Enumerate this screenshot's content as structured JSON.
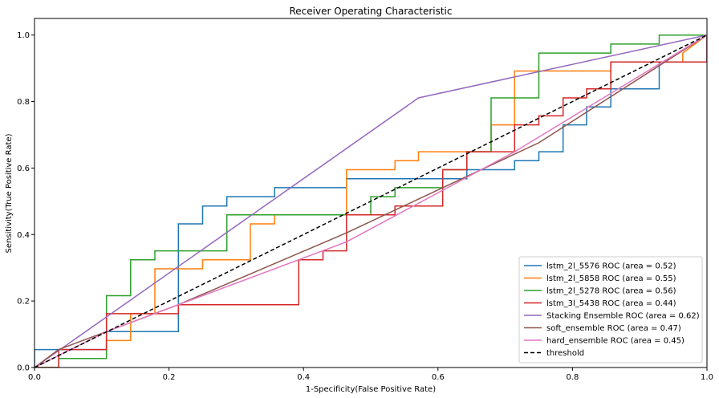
{
  "chart_data": {
    "type": "line",
    "title": "Receiver Operating Characteristic",
    "xlabel": "1-Specificity(False Positive Rate)",
    "ylabel": "Sensitivity(True Positive Rate)",
    "xlim": [
      0,
      1
    ],
    "ylim": [
      0,
      1.05
    ],
    "x_ticks": [
      "0.0",
      "0.2",
      "0.4",
      "0.6",
      "0.8",
      "1.0"
    ],
    "y_ticks": [
      "0.0",
      "0.2",
      "0.4",
      "0.6",
      "0.8",
      "1.0"
    ],
    "legend_position": "lower-right",
    "series": [
      {
        "name": "lstm_2l_5576 ROC (area = 0.52)",
        "color": "#1f77b4",
        "x": [
          0,
          0,
          0.107,
          0.107,
          0.214,
          0.214,
          0.25,
          0.25,
          0.286,
          0.286,
          0.357,
          0.357,
          0.464,
          0.464,
          0.643,
          0.643,
          0.714,
          0.714,
          0.75,
          0.75,
          0.786,
          0.786,
          0.821,
          0.821,
          0.857,
          0.857,
          0.929,
          0.929,
          1.0,
          1.0
        ],
        "y": [
          0,
          0.054,
          0.054,
          0.108,
          0.108,
          0.432,
          0.432,
          0.486,
          0.486,
          0.514,
          0.514,
          0.541,
          0.541,
          0.568,
          0.568,
          0.595,
          0.595,
          0.622,
          0.622,
          0.649,
          0.649,
          0.73,
          0.73,
          0.784,
          0.784,
          0.838,
          0.838,
          0.919,
          0.919,
          1.0
        ]
      },
      {
        "name": "lstm_2l_5858 ROC (area = 0.55)",
        "color": "#ff7f0e",
        "x": [
          0,
          0.036,
          0.036,
          0.107,
          0.107,
          0.143,
          0.143,
          0.179,
          0.179,
          0.25,
          0.25,
          0.321,
          0.321,
          0.357,
          0.357,
          0.464,
          0.464,
          0.536,
          0.536,
          0.571,
          0.571,
          0.679,
          0.679,
          0.714,
          0.714,
          0.857,
          0.857,
          0.964,
          0.964,
          1.0
        ],
        "y": [
          0,
          0,
          0.027,
          0.027,
          0.081,
          0.081,
          0.162,
          0.162,
          0.297,
          0.297,
          0.324,
          0.324,
          0.432,
          0.432,
          0.459,
          0.459,
          0.595,
          0.595,
          0.622,
          0.622,
          0.649,
          0.649,
          0.73,
          0.73,
          0.892,
          0.892,
          0.919,
          0.919,
          0.946,
          1.0
        ]
      },
      {
        "name": "lstm_2l_5278 ROC (area = 0.56)",
        "color": "#2ca02c",
        "x": [
          0,
          0.036,
          0.036,
          0.107,
          0.107,
          0.143,
          0.143,
          0.179,
          0.179,
          0.286,
          0.286,
          0.5,
          0.5,
          0.536,
          0.536,
          0.607,
          0.607,
          0.643,
          0.643,
          0.679,
          0.679,
          0.75,
          0.75,
          0.857,
          0.857,
          0.929,
          0.929,
          1.0
        ],
        "y": [
          0,
          0,
          0.027,
          0.027,
          0.216,
          0.216,
          0.324,
          0.324,
          0.351,
          0.351,
          0.459,
          0.459,
          0.514,
          0.514,
          0.541,
          0.541,
          0.595,
          0.595,
          0.649,
          0.649,
          0.811,
          0.811,
          0.946,
          0.946,
          0.973,
          0.973,
          1.0,
          1.0
        ]
      },
      {
        "name": "lstm_3l_5438 ROC (area = 0.44)",
        "color": "#d62728",
        "x": [
          0,
          0.036,
          0.036,
          0.107,
          0.107,
          0.214,
          0.214,
          0.393,
          0.393,
          0.429,
          0.429,
          0.464,
          0.464,
          0.536,
          0.536,
          0.607,
          0.607,
          0.643,
          0.643,
          0.714,
          0.714,
          0.75,
          0.75,
          0.786,
          0.786,
          0.821,
          0.821,
          0.857,
          0.857,
          0.964,
          0.964,
          1.0,
          1.0
        ],
        "y": [
          0,
          0,
          0.054,
          0.054,
          0.162,
          0.162,
          0.189,
          0.189,
          0.324,
          0.324,
          0.351,
          0.351,
          0.459,
          0.459,
          0.486,
          0.486,
          0.595,
          0.595,
          0.649,
          0.649,
          0.73,
          0.73,
          0.757,
          0.757,
          0.811,
          0.811,
          0.838,
          0.838,
          0.919,
          0.919,
          0.919,
          0.919,
          1.0
        ]
      },
      {
        "name": "Stacking Ensemble ROC (area = 0.62)",
        "color": "#9467bd",
        "x": [
          0,
          0.571,
          1.0
        ],
        "y": [
          0,
          0.811,
          1.0
        ]
      },
      {
        "name": "soft_ensemble ROC (area = 0.47)",
        "color": "#8c564b",
        "x": [
          0,
          0.036,
          0.107,
          0.214,
          0.464,
          0.607,
          0.75,
          1.0
        ],
        "y": [
          0,
          0.054,
          0.108,
          0.189,
          0.405,
          0.541,
          0.676,
          1.0
        ]
      },
      {
        "name": "hard_ensemble ROC (area = 0.45)",
        "color": "#e377c2",
        "x": [
          0,
          0.107,
          0.464,
          0.714,
          1.0
        ],
        "y": [
          0,
          0.108,
          0.378,
          0.649,
          1.0
        ]
      },
      {
        "name": "threshold",
        "color": "#000000",
        "dashed": true,
        "x": [
          0,
          1.0
        ],
        "y": [
          0,
          1.0
        ]
      }
    ]
  }
}
